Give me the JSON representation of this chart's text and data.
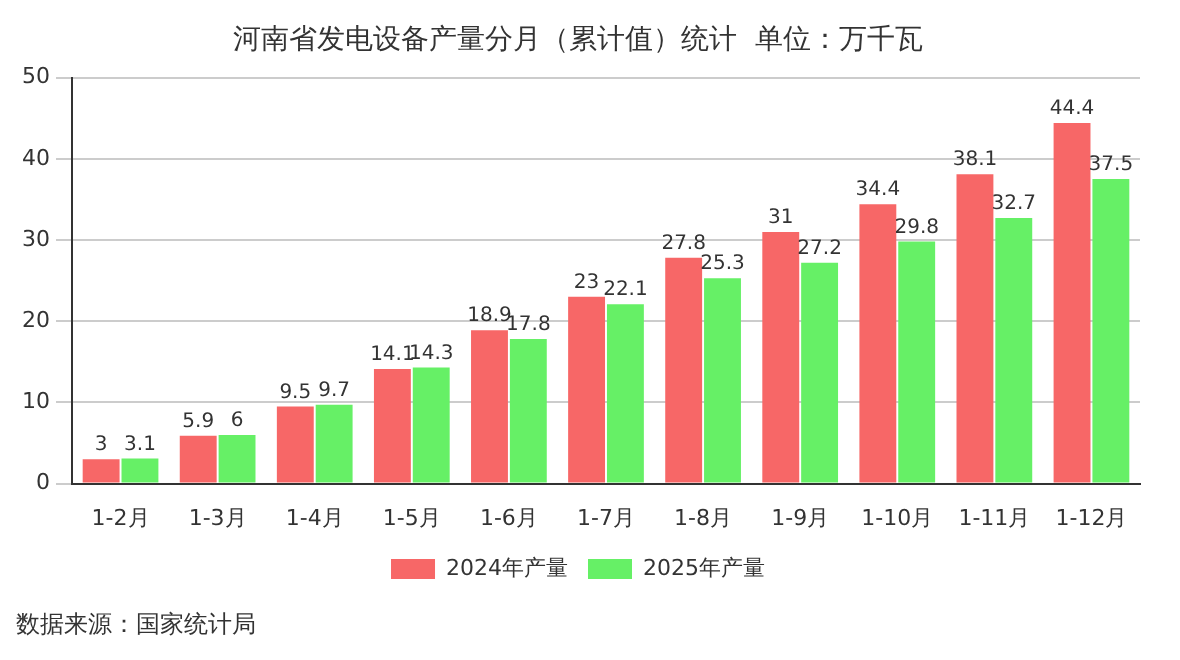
{
  "chart_data": {
    "type": "bar",
    "title": "河南省发电设备产量分月（累计值）统计  单位：万千瓦",
    "categories": [
      "1-2月",
      "1-3月",
      "1-4月",
      "1-5月",
      "1-6月",
      "1-7月",
      "1-8月",
      "1-9月",
      "1-10月",
      "1-11月",
      "1-12月"
    ],
    "series": [
      {
        "name": "2024年产量",
        "color": "#f76767",
        "values": [
          3,
          5.9,
          9.5,
          14.1,
          18.9,
          23,
          27.8,
          31,
          34.4,
          38.1,
          44.4
        ]
      },
      {
        "name": "2025年产量",
        "color": "#66f066",
        "values": [
          3.1,
          6,
          9.7,
          14.3,
          17.8,
          22.1,
          25.3,
          27.2,
          29.8,
          32.7,
          37.5
        ]
      }
    ],
    "ylim": [
      0,
      50
    ],
    "yticks": [
      0,
      10,
      20,
      30,
      40,
      50
    ],
    "grid": "y",
    "legend": "bottom",
    "data_labels": true,
    "annotations": [
      "数据来源：国家统计局"
    ]
  }
}
